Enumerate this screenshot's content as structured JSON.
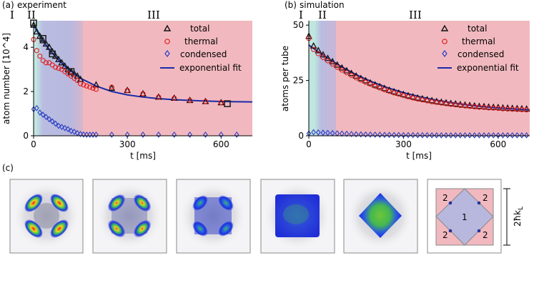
{
  "panels": {
    "a": {
      "tag": "(a)",
      "title": "experiment"
    },
    "b": {
      "tag": "(b)",
      "title": "simulation"
    },
    "c": {
      "tag": "(c)"
    }
  },
  "regions": [
    "I",
    "II",
    "III"
  ],
  "legend": {
    "total": "total",
    "thermal": "thermal",
    "condensed": "condensed",
    "fit": "exponential fit"
  },
  "colors": {
    "thermal": "#e31a1c",
    "condensed": "#2b3fc4",
    "fit": "#1a2aa8",
    "total": "#111111",
    "region1": "#bfe6df",
    "region2": "#b4b6dd",
    "region3": "#f1b9bf"
  },
  "inset": {
    "region_labels": [
      "2",
      "2",
      "1",
      "2",
      "2"
    ],
    "scale_label": "2ħk",
    "scale_sub": "L"
  },
  "chart_data": [
    {
      "type": "scatter",
      "title": "experiment",
      "xlabel": "t [ms]",
      "ylabel": "atom number [10^4]",
      "xlim": [
        0,
        700
      ],
      "ylim": [
        0,
        5.2
      ],
      "xticks": [
        0,
        300,
        600
      ],
      "yticks": [
        0,
        2,
        4
      ],
      "regions_x": {
        "I": [
          0,
          10
        ],
        "II": [
          10,
          150
        ],
        "III": [
          150,
          700
        ]
      },
      "legend_position": "top-right",
      "series": [
        {
          "name": "total",
          "marker": "triangle",
          "x": [
            0,
            10,
            20,
            30,
            40,
            50,
            60,
            70,
            80,
            90,
            100,
            110,
            120,
            130,
            140,
            150,
            200,
            250,
            300,
            350,
            400,
            450,
            500,
            550,
            600
          ],
          "y": [
            5.0,
            4.7,
            4.5,
            4.3,
            4.15,
            4.0,
            3.8,
            3.6,
            3.45,
            3.3,
            3.15,
            3.0,
            2.9,
            2.8,
            2.7,
            2.55,
            2.3,
            2.15,
            2.05,
            1.9,
            1.75,
            1.7,
            1.6,
            1.55,
            1.5
          ]
        },
        {
          "name": "total (highlighted)",
          "marker": "square",
          "x": [
            0,
            30,
            60,
            120,
            620
          ],
          "y": [
            5.1,
            4.4,
            3.7,
            2.9,
            1.45
          ]
        },
        {
          "name": "thermal",
          "marker": "circle",
          "x": [
            0,
            10,
            20,
            30,
            40,
            50,
            60,
            70,
            80,
            90,
            100,
            110,
            120,
            130,
            140,
            150,
            160,
            170,
            180,
            190,
            200,
            250,
            300,
            350,
            400,
            450,
            500,
            550,
            600
          ],
          "y": [
            4.35,
            3.85,
            3.6,
            3.4,
            3.3,
            3.3,
            3.2,
            3.1,
            3.05,
            3.0,
            2.9,
            2.8,
            2.7,
            2.6,
            2.5,
            2.35,
            2.3,
            2.25,
            2.2,
            2.15,
            2.1,
            2.2,
            2.05,
            1.9,
            1.75,
            1.7,
            1.6,
            1.55,
            1.5
          ]
        },
        {
          "name": "condensed",
          "marker": "diamond",
          "x": [
            0,
            10,
            20,
            30,
            40,
            50,
            60,
            70,
            80,
            90,
            100,
            110,
            120,
            130,
            140,
            150,
            160,
            170,
            180,
            190,
            200,
            250,
            300,
            350,
            400,
            450,
            500,
            550,
            600,
            650
          ],
          "y": [
            1.2,
            1.25,
            1.05,
            0.95,
            0.85,
            0.75,
            0.65,
            0.55,
            0.45,
            0.4,
            0.35,
            0.3,
            0.22,
            0.18,
            0.12,
            0.08,
            0.06,
            0.05,
            0.05,
            0.05,
            0.05,
            0.05,
            0.05,
            0.05,
            0.05,
            0.05,
            0.05,
            0.05,
            0.05,
            0.05
          ]
        },
        {
          "name": "exponential fit",
          "line": true,
          "x": [
            0,
            25,
            50,
            75,
            100,
            150,
            200,
            250,
            300,
            350,
            400,
            450,
            500,
            550,
            600,
            650,
            700
          ],
          "y": [
            5.0,
            4.4,
            3.9,
            3.5,
            3.15,
            2.6,
            2.25,
            2.0,
            1.85,
            1.75,
            1.68,
            1.63,
            1.6,
            1.57,
            1.55,
            1.54,
            1.53
          ]
        }
      ]
    },
    {
      "type": "scatter",
      "title": "simulation",
      "xlabel": "t [ms]",
      "ylabel": "atoms per tube",
      "xlim": [
        0,
        700
      ],
      "ylim": [
        0,
        52
      ],
      "xticks": [
        0,
        300,
        600
      ],
      "yticks": [
        0,
        25,
        50
      ],
      "regions_x": {
        "I": [
          0,
          20
        ],
        "II": [
          20,
          80
        ],
        "III": [
          80,
          700
        ]
      },
      "legend_position": "top-right",
      "series": [
        {
          "name": "total",
          "marker": "triangle",
          "x": [
            0,
            15,
            30,
            45,
            60,
            75,
            90,
            105,
            120,
            135,
            150,
            165,
            180,
            195,
            210,
            225,
            240,
            255,
            270,
            285,
            300,
            315,
            330,
            345,
            360,
            375,
            390,
            405,
            420,
            435,
            450,
            465,
            480,
            495,
            510,
            525,
            540,
            555,
            570,
            585,
            600,
            615,
            630,
            645,
            660,
            675,
            690
          ],
          "y": [
            45.0,
            40.6,
            38.5,
            36.6,
            35.0,
            33.5,
            32.0,
            30.7,
            29.4,
            28.2,
            27.0,
            25.9,
            24.9,
            23.9,
            23.0,
            22.2,
            21.4,
            20.6,
            19.9,
            19.3,
            18.7,
            18.1,
            17.6,
            17.1,
            16.7,
            16.3,
            15.9,
            15.5,
            15.2,
            14.9,
            14.6,
            14.4,
            14.1,
            13.9,
            13.7,
            13.5,
            13.3,
            13.2,
            13.0,
            12.9,
            12.8,
            12.6,
            12.5,
            12.4,
            12.3,
            12.2,
            12.1
          ]
        },
        {
          "name": "thermal",
          "marker": "circle",
          "x": [
            0,
            15,
            30,
            45,
            60,
            75,
            90,
            105,
            120,
            135,
            150,
            165,
            180,
            195,
            210,
            225,
            240,
            255,
            270,
            285,
            300,
            315,
            330,
            345,
            360,
            375,
            390,
            405,
            420,
            435,
            450,
            465,
            480,
            495,
            510,
            525,
            540,
            555,
            570,
            585,
            600,
            615,
            630,
            645,
            660,
            675,
            690
          ],
          "y": [
            44.0,
            39.0,
            37.1,
            35.4,
            33.9,
            32.4,
            31.0,
            29.7,
            28.5,
            27.3,
            26.2,
            25.2,
            24.2,
            23.3,
            22.4,
            21.6,
            20.8,
            20.1,
            19.4,
            18.8,
            18.2,
            17.6,
            17.1,
            16.6,
            16.2,
            15.8,
            15.4,
            15.1,
            14.8,
            14.5,
            14.2,
            14.0,
            13.7,
            13.5,
            13.3,
            13.1,
            12.9,
            12.8,
            12.6,
            12.5,
            12.4,
            12.2,
            12.1,
            12.0,
            11.9,
            11.8,
            11.7
          ]
        },
        {
          "name": "condensed",
          "marker": "diamond",
          "x": [
            0,
            15,
            30,
            45,
            60,
            75,
            90,
            105,
            120,
            135,
            150,
            165,
            180,
            195,
            210,
            225,
            240,
            255,
            270,
            285,
            300,
            315,
            330,
            345,
            360,
            375,
            390,
            405,
            420,
            435,
            450,
            465,
            480,
            495,
            510,
            525,
            540,
            555,
            570,
            585,
            600,
            615,
            630,
            645,
            660,
            675,
            690
          ],
          "y": [
            1.0,
            1.6,
            1.5,
            1.4,
            1.3,
            1.2,
            1.1,
            1.0,
            0.9,
            0.8,
            0.7,
            0.65,
            0.6,
            0.55,
            0.5,
            0.45,
            0.4,
            0.4,
            0.35,
            0.35,
            0.3,
            0.3,
            0.3,
            0.25,
            0.25,
            0.25,
            0.2,
            0.2,
            0.2,
            0.2,
            0.2,
            0.2,
            0.2,
            0.2,
            0.2,
            0.2,
            0.2,
            0.2,
            0.2,
            0.2,
            0.2,
            0.2,
            0.2,
            0.2,
            0.2,
            0.2,
            0.2
          ]
        },
        {
          "name": "exponential fit",
          "line": true,
          "x": [
            0,
            50,
            100,
            150,
            200,
            250,
            300,
            350,
            400,
            450,
            500,
            550,
            600,
            650,
            700
          ],
          "y": [
            41.0,
            36.0,
            31.5,
            27.6,
            24.4,
            21.7,
            19.5,
            17.7,
            16.2,
            15.0,
            14.0,
            13.2,
            12.6,
            12.1,
            11.7
          ]
        }
      ]
    }
  ]
}
